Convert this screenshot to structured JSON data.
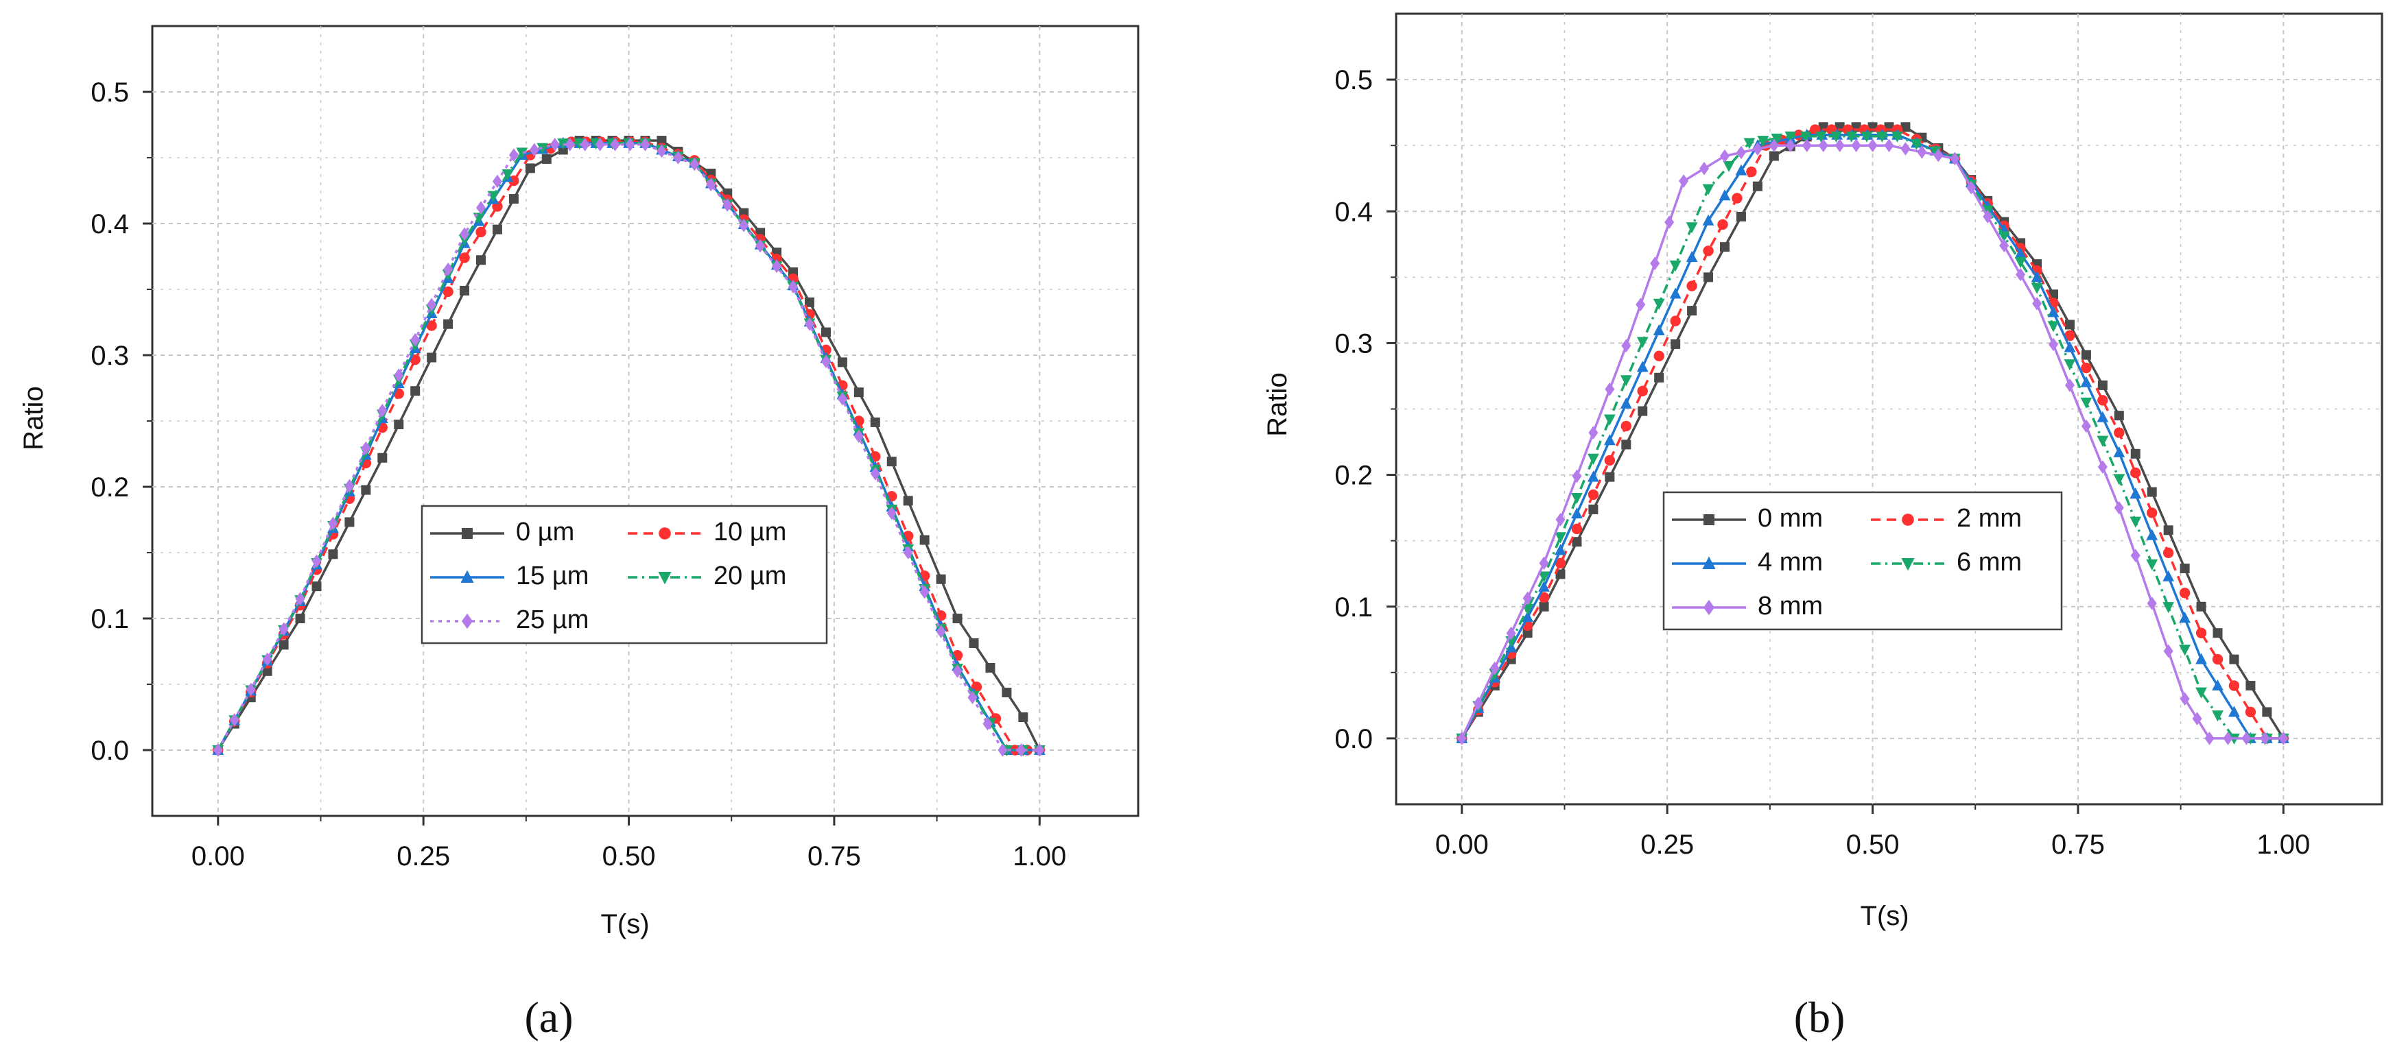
{
  "colors": {
    "series": [
      "#4a4a4a",
      "#ff3030",
      "#1f77d4",
      "#1aa86a",
      "#b57bea"
    ],
    "grid": "#c8c8c8",
    "axis": "#333333",
    "text": "#111111"
  },
  "chart_data": [
    {
      "type": "line",
      "panel_label": "(a)",
      "xlabel": "T(s)",
      "ylabel": "Ratio",
      "xlim": [
        -0.08,
        1.12
      ],
      "ylim": [
        -0.05,
        0.55
      ],
      "xticks": [
        "0.00",
        "0.25",
        "0.50",
        "0.75",
        "1.00"
      ],
      "xtick_values": [
        0,
        0.25,
        0.5,
        0.75,
        1.0
      ],
      "yticks": [
        "0.0",
        "0.1",
        "0.2",
        "0.3",
        "0.4",
        "0.5"
      ],
      "ytick_values": [
        0,
        0.1,
        0.2,
        0.3,
        0.4,
        0.5
      ],
      "grid": true,
      "legend_position": "center",
      "series": [
        {
          "name": "0 µm",
          "dash": "solid",
          "marker": "square",
          "points": [
            [
              0,
              0
            ],
            [
              0.1,
              0.1
            ],
            [
              0.2,
              0.222
            ],
            [
              0.3,
              0.349
            ],
            [
              0.38,
              0.442
            ],
            [
              0.44,
              0.463
            ],
            [
              0.54,
              0.463
            ],
            [
              0.6,
              0.438
            ],
            [
              0.7,
              0.363
            ],
            [
              0.8,
              0.249
            ],
            [
              0.9,
              0.1
            ],
            [
              0.98,
              0.025
            ],
            [
              1.0,
              0
            ]
          ]
        },
        {
          "name": "10 µm",
          "dash": "dash",
          "marker": "circle",
          "points": [
            [
              0,
              0
            ],
            [
              0.1,
              0.11
            ],
            [
              0.2,
              0.245
            ],
            [
              0.3,
              0.374
            ],
            [
              0.38,
              0.452
            ],
            [
              0.43,
              0.462
            ],
            [
              0.52,
              0.462
            ],
            [
              0.58,
              0.448
            ],
            [
              0.7,
              0.358
            ],
            [
              0.8,
              0.223
            ],
            [
              0.9,
              0.072
            ],
            [
              0.97,
              0
            ],
            [
              1.0,
              0
            ]
          ]
        },
        {
          "name": "15 µm",
          "dash": "solid",
          "marker": "triangle",
          "points": [
            [
              0,
              0
            ],
            [
              0.1,
              0.113
            ],
            [
              0.2,
              0.252
            ],
            [
              0.3,
              0.385
            ],
            [
              0.37,
              0.452
            ],
            [
              0.42,
              0.461
            ],
            [
              0.52,
              0.461
            ],
            [
              0.58,
              0.446
            ],
            [
              0.7,
              0.353
            ],
            [
              0.8,
              0.215
            ],
            [
              0.9,
              0.064
            ],
            [
              0.96,
              0
            ],
            [
              1.0,
              0
            ]
          ]
        },
        {
          "name": "20 µm",
          "dash": "dashdot",
          "marker": "triangle-down",
          "points": [
            [
              0,
              0
            ],
            [
              0.1,
              0.114
            ],
            [
              0.2,
              0.255
            ],
            [
              0.3,
              0.388
            ],
            [
              0.37,
              0.454
            ],
            [
              0.42,
              0.461
            ],
            [
              0.52,
              0.461
            ],
            [
              0.58,
              0.446
            ],
            [
              0.7,
              0.352
            ],
            [
              0.8,
              0.213
            ],
            [
              0.9,
              0.062
            ],
            [
              0.96,
              0
            ],
            [
              1.0,
              0
            ]
          ]
        },
        {
          "name": "25 µm",
          "dash": "dot",
          "marker": "diamond",
          "points": [
            [
              0,
              0
            ],
            [
              0.1,
              0.115
            ],
            [
              0.2,
              0.258
            ],
            [
              0.3,
              0.392
            ],
            [
              0.36,
              0.452
            ],
            [
              0.41,
              0.46
            ],
            [
              0.52,
              0.46
            ],
            [
              0.58,
              0.445
            ],
            [
              0.7,
              0.352
            ],
            [
              0.8,
              0.21
            ],
            [
              0.9,
              0.06
            ],
            [
              0.955,
              0
            ],
            [
              1.0,
              0
            ]
          ]
        }
      ]
    },
    {
      "type": "line",
      "panel_label": "(b)",
      "xlabel": "T(s)",
      "ylabel": "Ratio",
      "xlim": [
        -0.08,
        1.12
      ],
      "ylim": [
        -0.05,
        0.55
      ],
      "xticks": [
        "0.00",
        "0.25",
        "0.50",
        "0.75",
        "1.00"
      ],
      "xtick_values": [
        0,
        0.25,
        0.5,
        0.75,
        1.0
      ],
      "yticks": [
        "0.0",
        "0.1",
        "0.2",
        "0.3",
        "0.4",
        "0.5"
      ],
      "ytick_values": [
        0,
        0.1,
        0.2,
        0.3,
        0.4,
        0.5
      ],
      "grid": true,
      "legend_position": "center-left",
      "series": [
        {
          "name": "0 mm",
          "dash": "solid",
          "marker": "square",
          "points": [
            [
              0,
              0
            ],
            [
              0.1,
              0.1
            ],
            [
              0.2,
              0.223
            ],
            [
              0.3,
              0.35
            ],
            [
              0.38,
              0.442
            ],
            [
              0.44,
              0.464
            ],
            [
              0.54,
              0.464
            ],
            [
              0.6,
              0.44
            ],
            [
              0.7,
              0.36
            ],
            [
              0.8,
              0.245
            ],
            [
              0.9,
              0.1
            ],
            [
              1.0,
              0
            ]
          ]
        },
        {
          "name": "2 mm",
          "dash": "dash",
          "marker": "circle",
          "points": [
            [
              0,
              0
            ],
            [
              0.1,
              0.107
            ],
            [
              0.2,
              0.237
            ],
            [
              0.3,
              0.37
            ],
            [
              0.37,
              0.45
            ],
            [
              0.43,
              0.462
            ],
            [
              0.53,
              0.462
            ],
            [
              0.6,
              0.44
            ],
            [
              0.7,
              0.355
            ],
            [
              0.8,
              0.232
            ],
            [
              0.9,
              0.08
            ],
            [
              0.98,
              0
            ],
            [
              1.0,
              0
            ]
          ]
        },
        {
          "name": "4 mm",
          "dash": "solid",
          "marker": "triangle",
          "points": [
            [
              0,
              0
            ],
            [
              0.1,
              0.115
            ],
            [
              0.2,
              0.254
            ],
            [
              0.3,
              0.393
            ],
            [
              0.36,
              0.45
            ],
            [
              0.42,
              0.458
            ],
            [
              0.53,
              0.458
            ],
            [
              0.6,
              0.44
            ],
            [
              0.7,
              0.35
            ],
            [
              0.8,
              0.217
            ],
            [
              0.9,
              0.06
            ],
            [
              0.96,
              0
            ],
            [
              1.0,
              0
            ]
          ]
        },
        {
          "name": "6 mm",
          "dash": "dashdot",
          "marker": "triangle-down",
          "points": [
            [
              0,
              0
            ],
            [
              0.1,
              0.123
            ],
            [
              0.2,
              0.272
            ],
            [
              0.3,
              0.417
            ],
            [
              0.35,
              0.452
            ],
            [
              0.4,
              0.457
            ],
            [
              0.53,
              0.457
            ],
            [
              0.6,
              0.44
            ],
            [
              0.7,
              0.342
            ],
            [
              0.8,
              0.197
            ],
            [
              0.9,
              0.035
            ],
            [
              0.94,
              0
            ],
            [
              1.0,
              0
            ]
          ]
        },
        {
          "name": "8 mm",
          "dash": "solid",
          "marker": "diamond",
          "points": [
            [
              0,
              0
            ],
            [
              0.1,
              0.133
            ],
            [
              0.2,
              0.298
            ],
            [
              0.27,
              0.423
            ],
            [
              0.32,
              0.442
            ],
            [
              0.38,
              0.45
            ],
            [
              0.52,
              0.45
            ],
            [
              0.6,
              0.44
            ],
            [
              0.7,
              0.33
            ],
            [
              0.8,
              0.175
            ],
            [
              0.88,
              0.03
            ],
            [
              0.91,
              0
            ],
            [
              1.0,
              0
            ]
          ]
        }
      ]
    }
  ]
}
